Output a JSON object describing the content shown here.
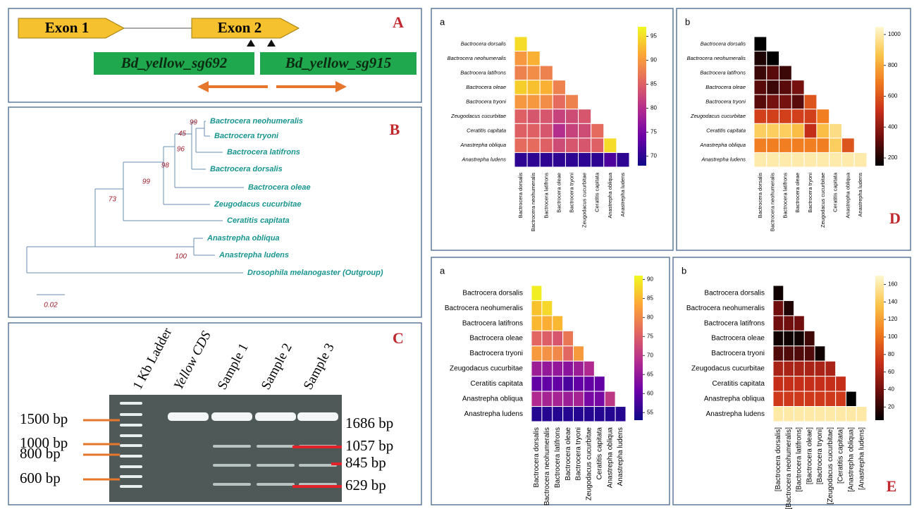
{
  "panel_letters": [
    "A",
    "B",
    "C",
    "D",
    "E"
  ],
  "gene": {
    "exons": [
      "Exon 1",
      "Exon 2"
    ],
    "guides": [
      "Bd_yellow_sg692",
      "Bd_yellow_sg915"
    ]
  },
  "tree": {
    "taxa": [
      "Bactrocera neohumeralis",
      "Bactrocera tryoni",
      "Bactrocera latifrons",
      "Bactrocera dorsalis",
      "Bactrocera oleae",
      "Zeugodacus cucurbitae",
      "Ceratitis capitata",
      "Anastrepha obliqua",
      "Anastrepha ludens",
      "Drosophila melanogaster (Outgroup)"
    ],
    "bootstrap": [
      99,
      45,
      96,
      98,
      99,
      73,
      100
    ],
    "scale_label": "0.02"
  },
  "gel": {
    "lanes": [
      "1 Kb Ladder",
      "Yellow CDS",
      "Sample 1",
      "Sample 2",
      "Sample 3"
    ],
    "ladder_labels": [
      "1500 bp",
      "1000 bp",
      "800 bp",
      "600 bp"
    ],
    "band_labels": [
      "1686 bp",
      "1057 bp",
      "845 bp",
      "629 bp"
    ]
  },
  "species": [
    "Bactrocera dorsalis",
    "Bactrocera neohumeralis",
    "Bactrocera latifrons",
    "Bactrocera oleae",
    "Bactrocera tryoni",
    "Zeugodacus cucurbitae",
    "Ceratitis capitata",
    "Anastrepha obliqua",
    "Anastrepha ludens"
  ],
  "heatmaps": [
    {
      "label": "a",
      "colormap": "plasma",
      "clim": [
        68,
        97
      ],
      "cticks": [
        70,
        75,
        80,
        85,
        90,
        95
      ],
      "values": [
        [
          95
        ],
        [
          90,
          92
        ],
        [
          88,
          89,
          88
        ],
        [
          94,
          93,
          92,
          88
        ],
        [
          90,
          90,
          89,
          86,
          88
        ],
        [
          85,
          84,
          84,
          82,
          83,
          84
        ],
        [
          85,
          85,
          84,
          80,
          82,
          83,
          86
        ],
        [
          86,
          86,
          85,
          83,
          84,
          84,
          85,
          95
        ],
        [
          70,
          70,
          70,
          70,
          70,
          70,
          70,
          72,
          70
        ]
      ]
    },
    {
      "label": "b",
      "colormap": "hot",
      "clim": [
        150,
        1050
      ],
      "cticks": [
        200,
        400,
        600,
        800,
        1000
      ],
      "values": [
        [
          150
        ],
        [
          200,
          150
        ],
        [
          250,
          300,
          250
        ],
        [
          300,
          250,
          300,
          350
        ],
        [
          300,
          350,
          350,
          300,
          600
        ],
        [
          550,
          550,
          550,
          550,
          550,
          700
        ],
        [
          900,
          900,
          900,
          850,
          500,
          850,
          950
        ],
        [
          700,
          700,
          700,
          700,
          700,
          700,
          900,
          600
        ],
        [
          1000,
          1000,
          1000,
          1000,
          1000,
          1000,
          1000,
          1000,
          1000
        ]
      ]
    },
    {
      "label": "a",
      "colormap": "plasma",
      "clim": [
        53,
        91
      ],
      "cticks": [
        55,
        60,
        65,
        70,
        75,
        80,
        85,
        90
      ],
      "values": [
        [
          90
        ],
        [
          86,
          88
        ],
        [
          85,
          84,
          85
        ],
        [
          76,
          75,
          74,
          78
        ],
        [
          82,
          81,
          80,
          76,
          82
        ],
        [
          66,
          65,
          65,
          64,
          66,
          68
        ],
        [
          60,
          60,
          60,
          58,
          60,
          60,
          60
        ],
        [
          68,
          67,
          67,
          66,
          67,
          62,
          62,
          70
        ],
        [
          55,
          55,
          55,
          55,
          55,
          55,
          55,
          55,
          55
        ]
      ]
    },
    {
      "label": "b",
      "colormap": "hot",
      "clim": [
        5,
        170
      ],
      "cticks": [
        20,
        40,
        60,
        80,
        100,
        120,
        140,
        160
      ],
      "xlabels": [
        "[Bactrocera dorsalis]",
        "[Bactrocera neohumeralis]",
        "[Bactrocera latifrons]",
        "[Bactrocera oleae]",
        "[Bactrocera tryoni]",
        "[Zeugodacus cucurbitae]",
        "[Ceratitis capitata]",
        "[Anastrepha obliqua]",
        "[Anastrepha ludens]"
      ],
      "values": [
        [
          10
        ],
        [
          40,
          15
        ],
        [
          40,
          40,
          40
        ],
        [
          10,
          10,
          10,
          25
        ],
        [
          30,
          30,
          30,
          30,
          10
        ],
        [
          60,
          60,
          60,
          60,
          60,
          60
        ],
        [
          70,
          70,
          70,
          70,
          70,
          70,
          70
        ],
        [
          75,
          75,
          75,
          75,
          75,
          75,
          75,
          5
        ],
        [
          160,
          160,
          160,
          160,
          160,
          160,
          160,
          160,
          160
        ]
      ]
    }
  ]
}
